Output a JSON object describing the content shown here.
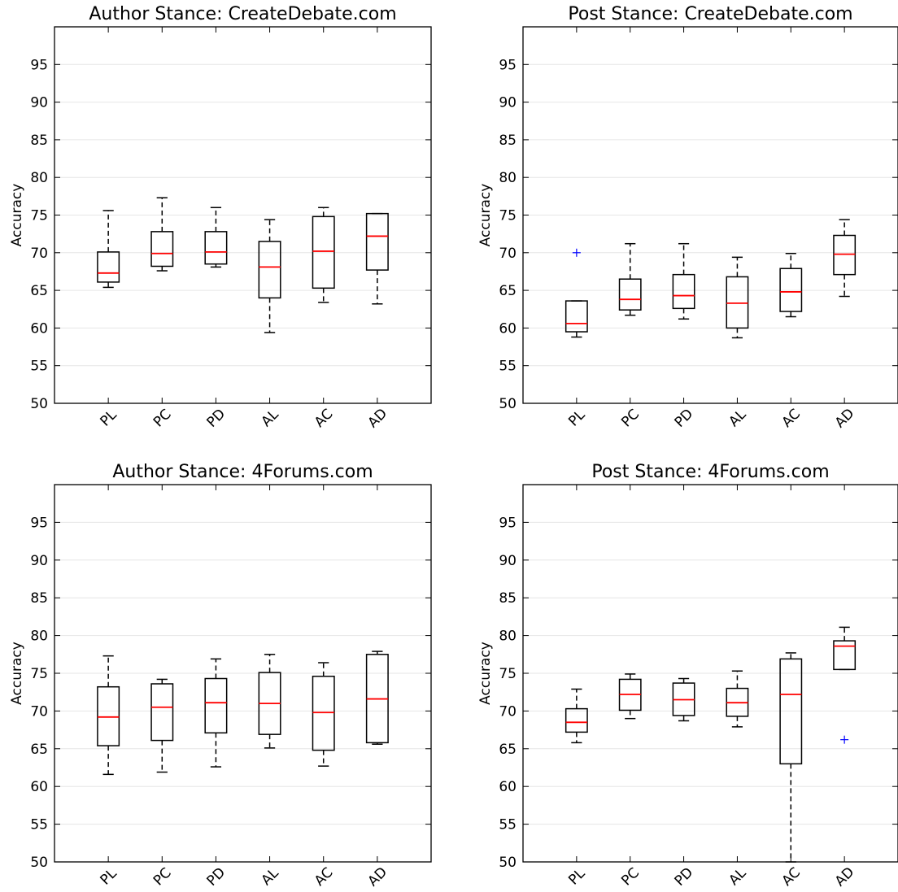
{
  "chart_data": [
    {
      "type": "box",
      "title": "Author Stance: CreateDebate.com",
      "ylabel": "Accuracy",
      "ylim": [
        50,
        100
      ],
      "yticks": [
        50,
        55,
        60,
        65,
        70,
        75,
        80,
        85,
        90,
        95
      ],
      "grid": "horizontal",
      "categories": [
        "PL",
        "PC",
        "PD",
        "AL",
        "AC",
        "AD"
      ],
      "boxes": [
        {
          "whislo": 65.4,
          "q1": 66.1,
          "med": 67.3,
          "q3": 70.1,
          "whishi": 75.6,
          "fliers": []
        },
        {
          "whislo": 67.6,
          "q1": 68.2,
          "med": 69.9,
          "q3": 72.8,
          "whishi": 77.3,
          "fliers": []
        },
        {
          "whislo": 68.1,
          "q1": 68.5,
          "med": 70.1,
          "q3": 72.8,
          "whishi": 76.0,
          "fliers": []
        },
        {
          "whislo": 59.4,
          "q1": 64.0,
          "med": 68.1,
          "q3": 71.5,
          "whishi": 74.4,
          "fliers": []
        },
        {
          "whislo": 63.4,
          "q1": 65.3,
          "med": 70.2,
          "q3": 74.8,
          "whishi": 76.0,
          "fliers": []
        },
        {
          "whislo": 63.2,
          "q1": 67.7,
          "med": 72.2,
          "q3": 75.2,
          "whishi": 75.2,
          "fliers": []
        }
      ]
    },
    {
      "type": "box",
      "title": "Post Stance: CreateDebate.com",
      "ylabel": "Accuracy",
      "ylim": [
        50,
        100
      ],
      "yticks": [
        50,
        55,
        60,
        65,
        70,
        75,
        80,
        85,
        90,
        95
      ],
      "grid": "horizontal",
      "categories": [
        "PL",
        "PC",
        "PD",
        "AL",
        "AC",
        "AD"
      ],
      "boxes": [
        {
          "whislo": 58.8,
          "q1": 59.5,
          "med": 60.6,
          "q3": 63.6,
          "whishi": 63.6,
          "fliers": [
            70.0
          ]
        },
        {
          "whislo": 61.7,
          "q1": 62.4,
          "med": 63.8,
          "q3": 66.5,
          "whishi": 71.2,
          "fliers": []
        },
        {
          "whislo": 61.2,
          "q1": 62.6,
          "med": 64.3,
          "q3": 67.1,
          "whishi": 71.2,
          "fliers": []
        },
        {
          "whislo": 58.7,
          "q1": 60.0,
          "med": 63.3,
          "q3": 66.8,
          "whishi": 69.4,
          "fliers": []
        },
        {
          "whislo": 61.5,
          "q1": 62.2,
          "med": 64.8,
          "q3": 67.9,
          "whishi": 69.9,
          "fliers": []
        },
        {
          "whislo": 64.2,
          "q1": 67.1,
          "med": 69.8,
          "q3": 72.3,
          "whishi": 74.4,
          "fliers": []
        }
      ]
    },
    {
      "type": "box",
      "title": "Author Stance: 4Forums.com",
      "ylabel": "Accuracy",
      "ylim": [
        50,
        100
      ],
      "yticks": [
        50,
        55,
        60,
        65,
        70,
        75,
        80,
        85,
        90,
        95
      ],
      "grid": "horizontal",
      "categories": [
        "PL",
        "PC",
        "PD",
        "AL",
        "AC",
        "AD"
      ],
      "boxes": [
        {
          "whislo": 61.6,
          "q1": 65.4,
          "med": 69.2,
          "q3": 73.2,
          "whishi": 77.3,
          "fliers": []
        },
        {
          "whislo": 61.9,
          "q1": 66.1,
          "med": 70.5,
          "q3": 73.6,
          "whishi": 74.2,
          "fliers": []
        },
        {
          "whislo": 62.6,
          "q1": 67.1,
          "med": 71.1,
          "q3": 74.3,
          "whishi": 76.9,
          "fliers": []
        },
        {
          "whislo": 65.1,
          "q1": 66.9,
          "med": 71.0,
          "q3": 75.1,
          "whishi": 77.5,
          "fliers": []
        },
        {
          "whislo": 62.7,
          "q1": 64.8,
          "med": 69.8,
          "q3": 74.6,
          "whishi": 76.4,
          "fliers": []
        },
        {
          "whislo": 65.6,
          "q1": 65.8,
          "med": 71.6,
          "q3": 77.5,
          "whishi": 77.9,
          "fliers": []
        }
      ]
    },
    {
      "type": "box",
      "title": "Post Stance: 4Forums.com",
      "ylabel": "Accuracy",
      "ylim": [
        50,
        100
      ],
      "yticks": [
        50,
        55,
        60,
        65,
        70,
        75,
        80,
        85,
        90,
        95
      ],
      "grid": "horizontal",
      "categories": [
        "PL",
        "PC",
        "PD",
        "AL",
        "AC",
        "AD"
      ],
      "boxes": [
        {
          "whislo": 65.8,
          "q1": 67.2,
          "med": 68.5,
          "q3": 70.3,
          "whishi": 72.9,
          "fliers": []
        },
        {
          "whislo": 69.0,
          "q1": 70.1,
          "med": 72.2,
          "q3": 74.2,
          "whishi": 74.9,
          "fliers": []
        },
        {
          "whislo": 68.7,
          "q1": 69.4,
          "med": 71.5,
          "q3": 73.7,
          "whishi": 74.3,
          "fliers": []
        },
        {
          "whislo": 67.9,
          "q1": 69.3,
          "med": 71.1,
          "q3": 73.0,
          "whishi": 75.3,
          "fliers": []
        },
        {
          "whislo": 50.0,
          "q1": 63.0,
          "med": 72.2,
          "q3": 76.9,
          "whishi": 77.7,
          "fliers": []
        },
        {
          "whislo": 75.5,
          "q1": 75.5,
          "med": 78.6,
          "q3": 79.3,
          "whishi": 81.1,
          "fliers": [
            66.2
          ]
        }
      ]
    }
  ],
  "colors": {
    "box": "#000000",
    "median": "#ff0000",
    "flier": "#0000ff",
    "grid": "#e6e6e6"
  }
}
